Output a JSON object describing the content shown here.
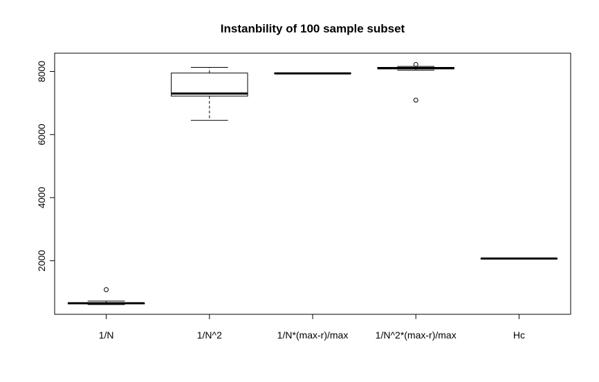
{
  "chart_data": {
    "type": "boxplot",
    "title": "Instanbility of 100 sample subset",
    "xlabel": "",
    "ylabel": "",
    "categories": [
      "1/N",
      "1/N^2",
      "1/N*(max-r)/max",
      "1/N^2*(max-r)/max",
      "Hc"
    ],
    "boxes": [
      {
        "min": 610,
        "q1": 630,
        "median": 650,
        "q3": 665,
        "max": 720,
        "outliers": [
          1080
        ]
      },
      {
        "min": 6450,
        "q1": 7220,
        "median": 7300,
        "q3": 7950,
        "max": 8130,
        "outliers": []
      },
      {
        "min": 7930,
        "q1": 7930,
        "median": 7940,
        "q3": 7950,
        "max": 7950,
        "outliers": []
      },
      {
        "min": 8040,
        "q1": 8080,
        "median": 8110,
        "q3": 8130,
        "max": 8160,
        "outliers": [
          8220,
          7090
        ]
      },
      {
        "min": 2060,
        "q1": 2060,
        "median": 2070,
        "q3": 2070,
        "max": 2070,
        "outliers": []
      }
    ],
    "yticks": [
      2000,
      4000,
      6000,
      8000
    ],
    "ylim": [
      300,
      8580
    ],
    "grid": false
  }
}
